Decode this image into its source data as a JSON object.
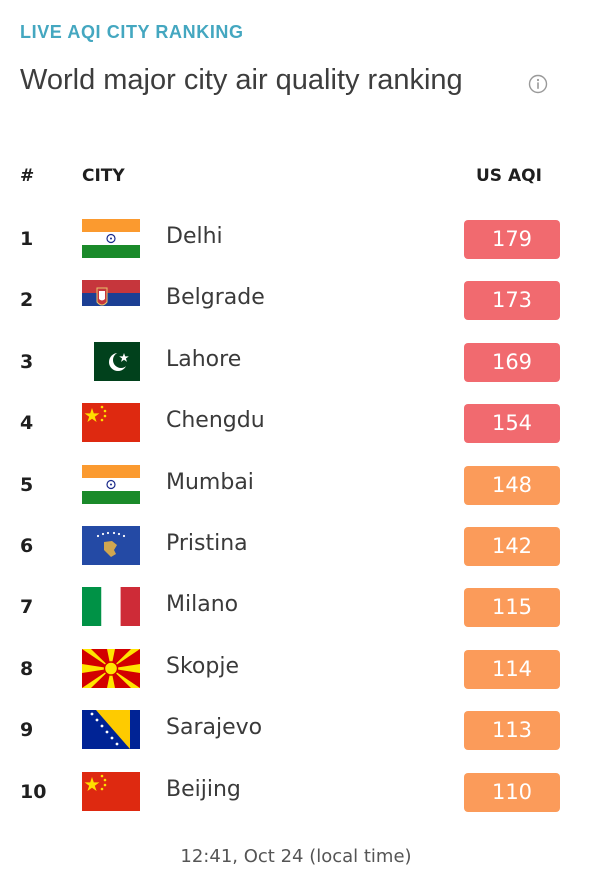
{
  "header": {
    "kicker": "LIVE AQI CITY RANKING",
    "title": "World major city air quality ranking",
    "info_icon": "info-icon"
  },
  "table": {
    "columns": {
      "rank": "#",
      "city": "CITY",
      "aqi": "US AQI"
    },
    "rows": [
      {
        "rank": "1",
        "city": "Delhi",
        "aqi": "179",
        "flag": "india",
        "level_color": "#f16a6f"
      },
      {
        "rank": "2",
        "city": "Belgrade",
        "aqi": "173",
        "flag": "serbia",
        "level_color": "#f16a6f"
      },
      {
        "rank": "3",
        "city": "Lahore",
        "aqi": "169",
        "flag": "pakistan",
        "level_color": "#f16a6f"
      },
      {
        "rank": "4",
        "city": "Chengdu",
        "aqi": "154",
        "flag": "china",
        "level_color": "#f16a6f"
      },
      {
        "rank": "5",
        "city": "Mumbai",
        "aqi": "148",
        "flag": "india",
        "level_color": "#fb9b5a"
      },
      {
        "rank": "6",
        "city": "Pristina",
        "aqi": "142",
        "flag": "kosovo",
        "level_color": "#fb9b5a"
      },
      {
        "rank": "7",
        "city": "Milano",
        "aqi": "115",
        "flag": "italy",
        "level_color": "#fb9b5a"
      },
      {
        "rank": "8",
        "city": "Skopje",
        "aqi": "114",
        "flag": "macedonia",
        "level_color": "#fb9b5a"
      },
      {
        "rank": "9",
        "city": "Sarajevo",
        "aqi": "113",
        "flag": "bosnia",
        "level_color": "#fb9b5a"
      },
      {
        "rank": "10",
        "city": "Beijing",
        "aqi": "110",
        "flag": "china",
        "level_color": "#fb9b5a"
      }
    ]
  },
  "footer": {
    "timestamp": "12:41, Oct 24 (local time)"
  }
}
